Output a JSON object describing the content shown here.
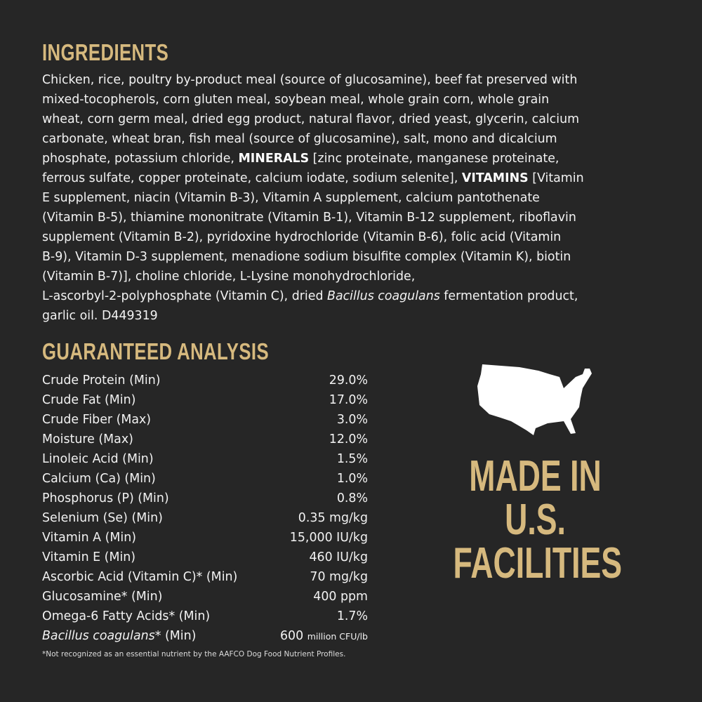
{
  "ingredients": {
    "title": "INGREDIENTS",
    "lines": [
      [
        {
          "t": "Chicken, rice, poultry by-product meal (source of glucosamine), beef fat preserved with"
        }
      ],
      [
        {
          "t": "mixed-tocopherols, corn gluten meal, soybean meal, whole grain corn, whole grain"
        }
      ],
      [
        {
          "t": "wheat, corn germ meal, dried egg product, natural flavor, dried yeast, glycerin, calcium"
        }
      ],
      [
        {
          "t": "carbonate, wheat bran, fish meal (source of glucosamine), salt, mono and dicalcium"
        }
      ],
      [
        {
          "t": "phosphate, potassium chloride, "
        },
        {
          "t": "MINERALS",
          "s": "b"
        },
        {
          "t": " [zinc proteinate, manganese proteinate,"
        }
      ],
      [
        {
          "t": "ferrous sulfate, copper proteinate, calcium iodate, sodium selenite], "
        },
        {
          "t": "VITAMINS",
          "s": "b"
        },
        {
          "t": " [Vitamin"
        }
      ],
      [
        {
          "t": "E supplement, niacin (Vitamin B-3), Vitamin A supplement, calcium pantothenate"
        }
      ],
      [
        {
          "t": "(Vitamin B-5), thiamine mononitrate (Vitamin B-1), Vitamin B-12 supplement, riboflavin"
        }
      ],
      [
        {
          "t": "supplement (Vitamin B-2), pyridoxine hydrochloride (Vitamin B-6), folic acid (Vitamin"
        }
      ],
      [
        {
          "t": "B-9), Vitamin D-3 supplement, menadione sodium bisulfite complex (Vitamin K), biotin"
        }
      ],
      [
        {
          "t": "(Vitamin B-7)], choline chloride, L-Lysine monohydrochloride,"
        }
      ],
      [
        {
          "t": "L-ascorbyl-2-polyphosphate (Vitamin C), dried "
        },
        {
          "t": "Bacillus coagulans",
          "s": "i"
        },
        {
          "t": " fermentation product,"
        }
      ],
      [
        {
          "t": "garlic oil. D449319"
        }
      ]
    ]
  },
  "analysis": {
    "title": "GUARANTEED ANALYSIS",
    "rows": [
      {
        "label": "Crude Protein (Min)",
        "value": "29.0%"
      },
      {
        "label": "Crude Fat (Min)",
        "value": "17.0%"
      },
      {
        "label": "Crude Fiber (Max)",
        "value": "3.0%"
      },
      {
        "label": "Moisture (Max)",
        "value": "12.0%"
      },
      {
        "label": "Linoleic Acid (Min)",
        "value": "1.5%"
      },
      {
        "label": "Calcium (Ca) (Min)",
        "value": "1.0%"
      },
      {
        "label": "Phosphorus (P) (Min)",
        "value": "0.8%"
      },
      {
        "label": "Selenium (Se) (Min)",
        "value": "0.35 mg/kg"
      },
      {
        "label": "Vitamin A (Min)",
        "value": "15,000 IU/kg"
      },
      {
        "label": "Vitamin E (Min)",
        "value": "460 IU/kg"
      },
      {
        "label": "Ascorbic Acid (Vitamin C)* (Min)",
        "value": "70 mg/kg"
      },
      {
        "label": "Glucosamine* (Min)",
        "value": "400 ppm"
      },
      {
        "label": "Omega-6 Fatty Acids* (Min)",
        "value": "1.7%"
      }
    ],
    "last_row": {
      "label_italic": "Bacillus coagulans",
      "label_rest": "* (Min)",
      "value": "600",
      "unit": "million CFU/lb"
    },
    "footnote": "*Not recognized as an essential nutrient by the AAFCO Dog Food Nutrient Profiles."
  },
  "badge": {
    "icon": "usa-map-icon",
    "lines": [
      "MADE IN",
      "U.S.",
      "FACILITIES"
    ]
  },
  "colors": {
    "background": "#262626",
    "accent": "#d6b97e",
    "text": "#f2f2f2"
  }
}
